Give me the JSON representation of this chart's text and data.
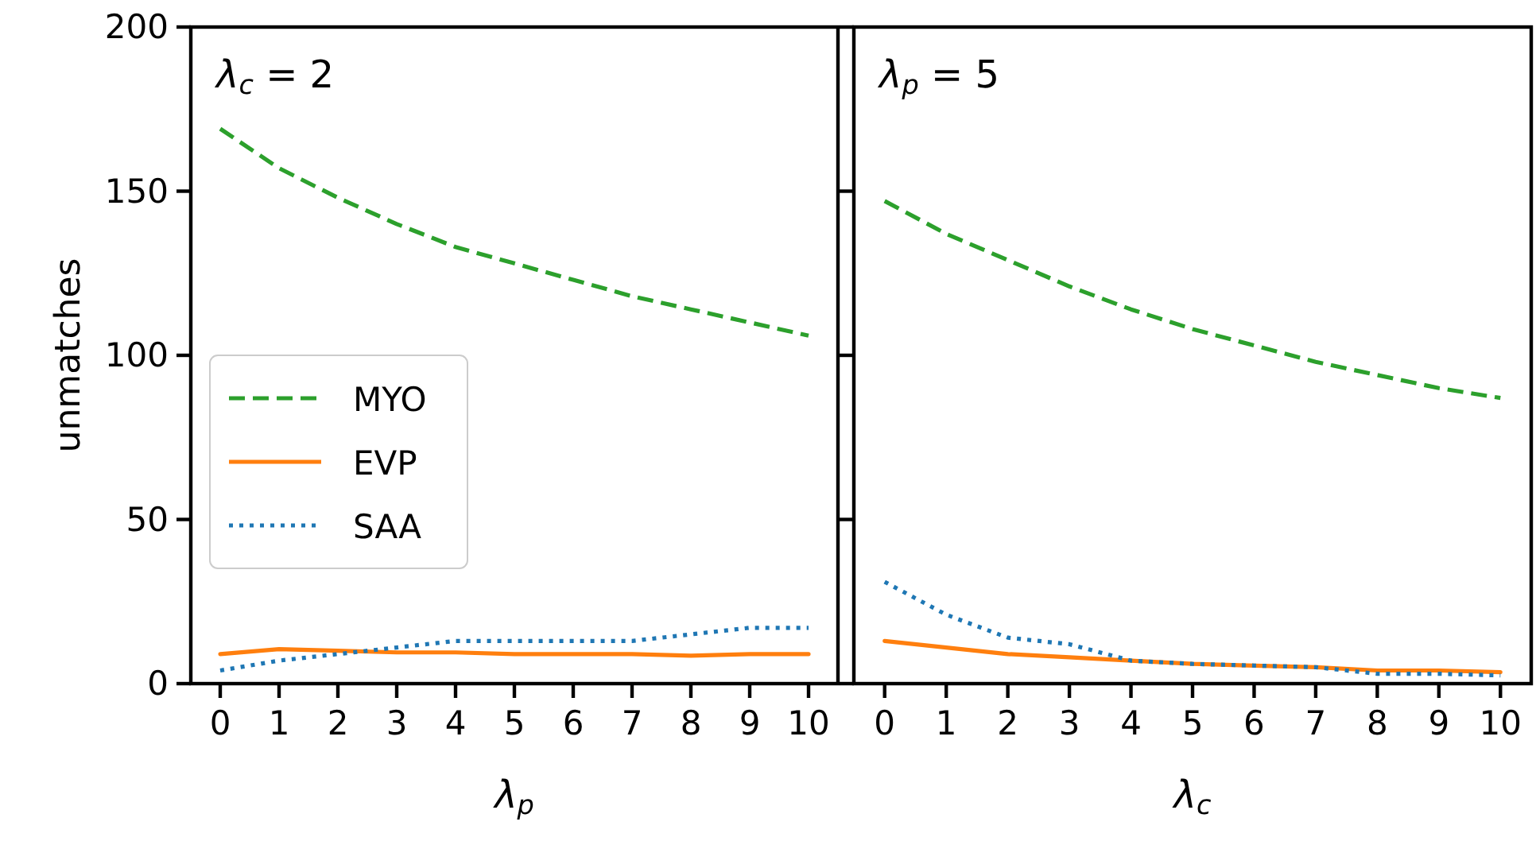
{
  "chart_data": [
    {
      "type": "line",
      "annotations": [
        "λ$_{c}$ = 2"
      ],
      "xlabel": "λ$_{p}$",
      "ylabel": "unmatches",
      "x": [
        0,
        1,
        2,
        3,
        4,
        5,
        6,
        7,
        8,
        9,
        10
      ],
      "xlim": [
        -0.5,
        10.5
      ],
      "ylim": [
        0,
        200
      ],
      "xticks": [
        0,
        1,
        2,
        3,
        4,
        5,
        6,
        7,
        8,
        9,
        10
      ],
      "yticks": [
        0,
        50,
        100,
        150,
        200
      ],
      "grid": false,
      "legend": "left",
      "marker": "none",
      "series": [
        {
          "name": "MYO",
          "color": "#2ca02c",
          "line_style": "dashed",
          "values": [
            169,
            157,
            148,
            140,
            133,
            128,
            123,
            118,
            114,
            110,
            106
          ]
        },
        {
          "name": "EVP",
          "color": "#ff7f0e",
          "line_style": "solid",
          "values": [
            9,
            10.5,
            10,
            9.5,
            9.5,
            9,
            9,
            9,
            8.5,
            9,
            9
          ]
        },
        {
          "name": "SAA",
          "color": "#1f77b4",
          "line_style": "dotted",
          "values": [
            4,
            7,
            9,
            11,
            13,
            13,
            13,
            13,
            15,
            17,
            17
          ]
        }
      ]
    },
    {
      "type": "line",
      "annotations": [
        "λ$_{p}$ = 5"
      ],
      "xlabel": "λ$_{c}$",
      "x": [
        0,
        1,
        2,
        3,
        4,
        5,
        6,
        7,
        8,
        9,
        10
      ],
      "xlim": [
        -0.5,
        10.5
      ],
      "ylim": [
        0,
        200
      ],
      "xticks": [
        0,
        1,
        2,
        3,
        4,
        5,
        6,
        7,
        8,
        9,
        10
      ],
      "yticks": [
        0,
        50,
        100,
        150,
        200
      ],
      "tick_labels": "x",
      "grid": false,
      "marker": "none",
      "series": [
        {
          "color": "#2ca02c",
          "line_style": "dashed",
          "values": [
            147,
            137,
            129,
            121,
            114,
            108,
            103,
            98,
            94,
            90,
            87
          ]
        },
        {
          "color": "#ff7f0e",
          "line_style": "solid",
          "values": [
            13,
            11,
            9,
            8,
            7,
            6,
            5.5,
            5,
            4,
            4,
            3.5
          ]
        },
        {
          "color": "#1f77b4",
          "line_style": "dotted",
          "values": [
            31,
            21,
            14,
            12,
            7,
            6,
            5.5,
            5,
            3,
            3,
            2.5
          ]
        }
      ]
    }
  ]
}
